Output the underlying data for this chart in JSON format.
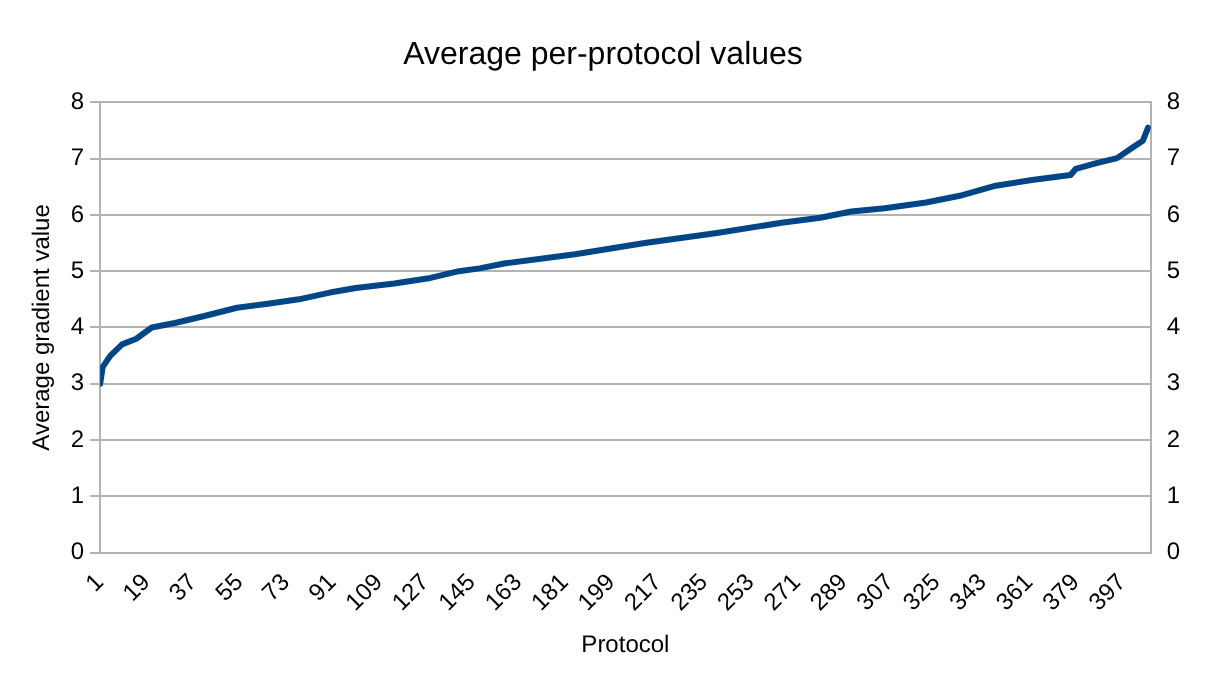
{
  "chart_data": {
    "type": "line",
    "title": "Average per-protocol values",
    "xlabel": "Protocol",
    "ylabel": "Average gradient value",
    "x": [
      1,
      2,
      5,
      9.5,
      15,
      21,
      30,
      41,
      54,
      66,
      78,
      90,
      100,
      115,
      129,
      140,
      148,
      158,
      185,
      212,
      240,
      265,
      280,
      292,
      305,
      321,
      335,
      348,
      362,
      377,
      379,
      387,
      395,
      401,
      405,
      407
    ],
    "series": [
      {
        "color": "#004586",
        "values": [
          3.0,
          3.3,
          3.5,
          3.7,
          3.8,
          4.0,
          4.08,
          4.2,
          4.35,
          4.42,
          4.5,
          4.62,
          4.7,
          4.78,
          4.88,
          5.0,
          5.05,
          5.14,
          5.3,
          5.5,
          5.68,
          5.86,
          5.95,
          6.06,
          6.12,
          6.22,
          6.35,
          6.52,
          6.62,
          6.71,
          6.82,
          6.92,
          7.01,
          7.2,
          7.32,
          7.55
        ]
      }
    ],
    "xlim": [
      1,
      408
    ],
    "xticks": [
      {
        "value": 1,
        "label": "1"
      },
      {
        "value": 19,
        "label": "19"
      },
      {
        "value": 37,
        "label": "37"
      },
      {
        "value": 55,
        "label": "55"
      },
      {
        "value": 73,
        "label": "73"
      },
      {
        "value": 91,
        "label": "91"
      },
      {
        "value": 109,
        "label": "109"
      },
      {
        "value": 127,
        "label": "127"
      },
      {
        "value": 145,
        "label": "145"
      },
      {
        "value": 163,
        "label": "163"
      },
      {
        "value": 181,
        "label": "181"
      },
      {
        "value": 199,
        "label": "199"
      },
      {
        "value": 217,
        "label": "217"
      },
      {
        "value": 235,
        "label": "235"
      },
      {
        "value": 253,
        "label": "253"
      },
      {
        "value": 271,
        "label": "271"
      },
      {
        "value": 289,
        "label": "289"
      },
      {
        "value": 307,
        "label": "307"
      },
      {
        "value": 325,
        "label": "325"
      },
      {
        "value": 343,
        "label": "343"
      },
      {
        "value": 361,
        "label": "361"
      },
      {
        "value": 379,
        "label": "379"
      },
      {
        "value": 397,
        "label": "397"
      }
    ],
    "ylim": [
      0,
      8
    ],
    "yticks": [
      0,
      1,
      2,
      3,
      4,
      5,
      6,
      7,
      8
    ],
    "y2lim": [
      0,
      8
    ],
    "y2ticks": [
      0,
      1,
      2,
      3,
      4,
      5,
      6,
      7,
      8
    ],
    "grid": "y",
    "legend": false,
    "marker": "none",
    "line_style": "solid"
  }
}
